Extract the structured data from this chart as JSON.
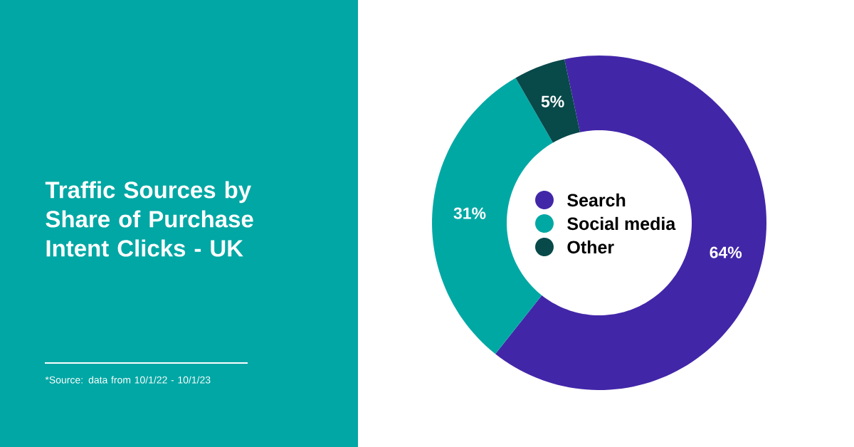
{
  "chart_data": {
    "type": "donut",
    "title": "Traffic Sources by Share of Purchase Intent Clicks - UK",
    "categories": [
      "Search",
      "Social media",
      "Other"
    ],
    "values": [
      64,
      31,
      5
    ],
    "colors": [
      "#4226a8",
      "#00a8a4",
      "#08494a"
    ],
    "value_labels": [
      "64%",
      "31%",
      "5%"
    ],
    "legend": "center",
    "annotations": [
      "*Source: data from 10/1/22 - 10/1/23"
    ]
  }
}
